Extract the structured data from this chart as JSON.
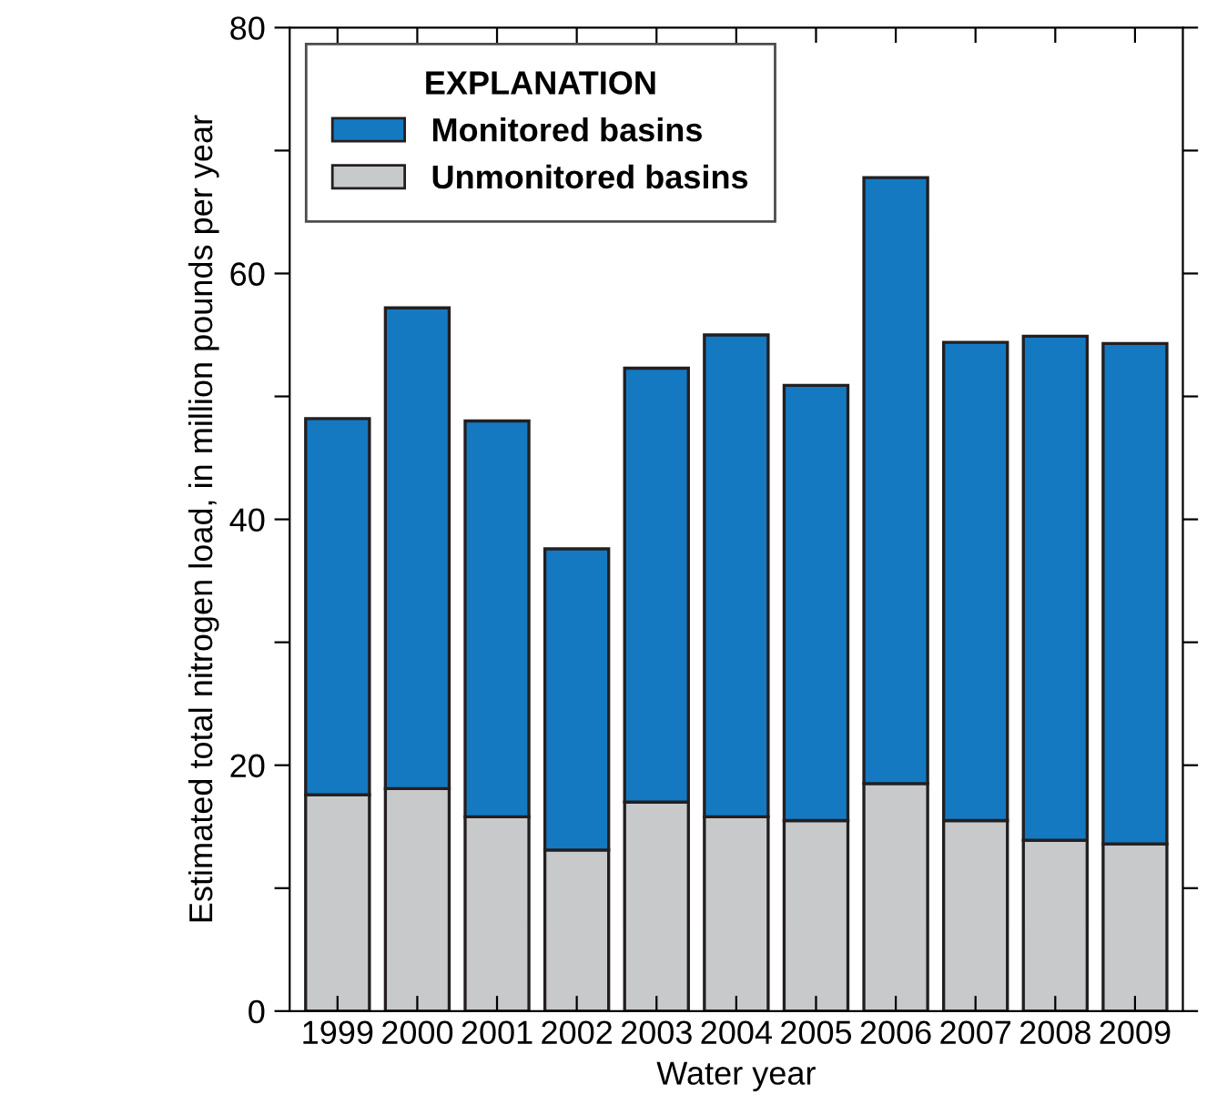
{
  "chart_data": {
    "type": "bar",
    "stacked": true,
    "xlabel": "Water year",
    "ylabel": "Estimated total nitrogen load, in million pounds per year",
    "legend_title": "EXPLANATION",
    "legend": "top left",
    "categories": [
      "1999",
      "2000",
      "2001",
      "2002",
      "2003",
      "2004",
      "2005",
      "2006",
      "2007",
      "2008",
      "2009"
    ],
    "series": [
      {
        "name": "Unmonitored basins",
        "color": "#c8c9cb",
        "values": [
          17.6,
          18.1,
          15.8,
          13.1,
          17.0,
          15.8,
          15.5,
          18.5,
          15.5,
          13.9,
          13.6
        ]
      },
      {
        "name": "Monitored basins",
        "color": "#1479c1",
        "values": [
          30.6,
          39.1,
          32.2,
          24.5,
          35.3,
          39.2,
          35.4,
          49.3,
          38.9,
          41.0,
          40.7
        ]
      }
    ],
    "ylim": [
      0,
      80
    ],
    "yticks": [
      0,
      {
        "value": 10,
        "label": null
      },
      20,
      {
        "value": 30,
        "label": null
      },
      40,
      {
        "value": 50,
        "label": null
      },
      60,
      {
        "value": 70,
        "label": null
      },
      80
    ],
    "grid": false
  }
}
